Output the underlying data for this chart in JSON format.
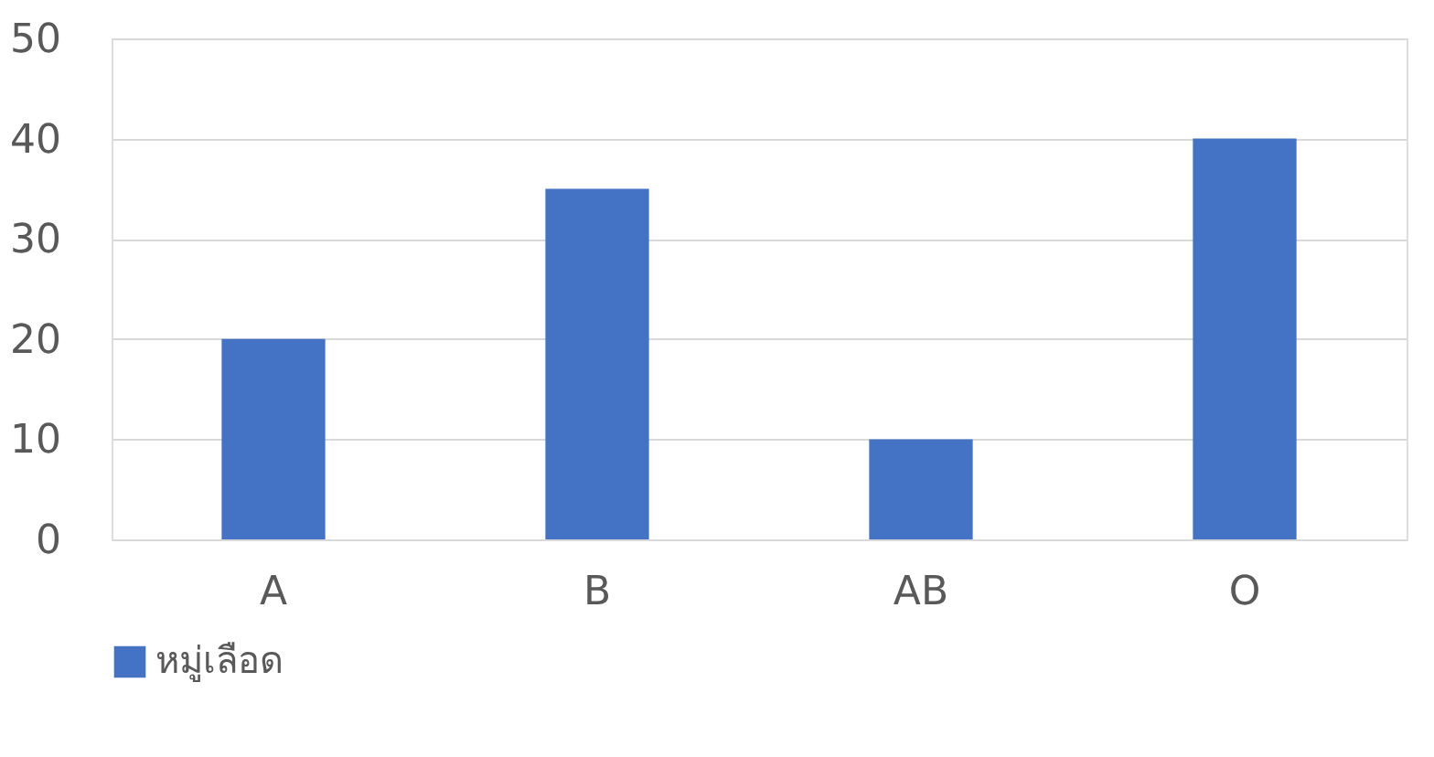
{
  "chart_data": {
    "type": "bar",
    "categories": [
      "A",
      "B",
      "AB",
      "O"
    ],
    "series": [
      {
        "name": "หมู่เลือด",
        "color": "#4472c4",
        "values": [
          20,
          35,
          10,
          40
        ]
      }
    ],
    "ylim": [
      0,
      50
    ],
    "yticks": [
      0,
      10,
      20,
      30,
      40,
      50
    ],
    "grid": "y",
    "legend": "bottom"
  }
}
